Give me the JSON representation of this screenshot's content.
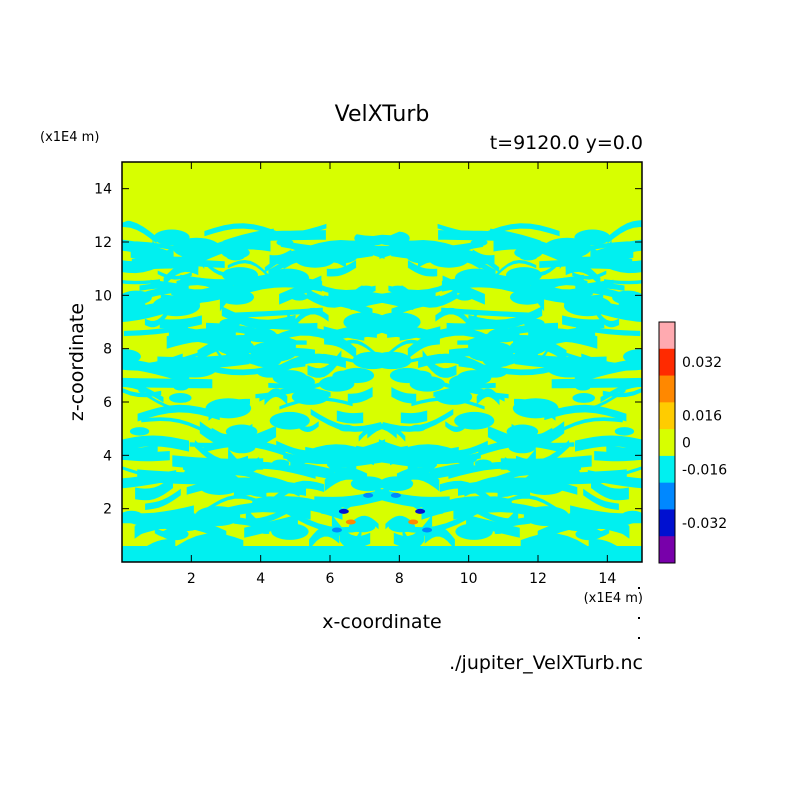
{
  "chart_data": {
    "type": "heatmap",
    "title": "VelXTurb",
    "subtitle": "t=9120.0 y=0.0",
    "xlabel": "x-coordinate",
    "ylabel": "z-coordinate",
    "x_unit": "(x1E4 m)",
    "y_unit": "(x1E4 m)",
    "source_file": "./jupiter_VelXTurb.nc",
    "xlim": [
      0,
      15
    ],
    "ylim": [
      0,
      15
    ],
    "x_ticks": [
      "2",
      "4",
      "6",
      "8",
      "10",
      "12",
      "14"
    ],
    "y_ticks": [
      "2",
      "4",
      "6",
      "8",
      "10",
      "12",
      "14"
    ],
    "colorbar": {
      "labels": [
        "0.032",
        "0.016",
        "0",
        "-0.016",
        "-0.032"
      ],
      "colors": [
        "#ffaab0",
        "#ff2a00",
        "#ff8800",
        "#ffcc00",
        "#d7ff00",
        "#00f0f0",
        "#0088ff",
        "#0010d0",
        "#7800aa"
      ]
    },
    "field_description": {
      "upper_uniform_value": 0,
      "upper_uniform_from_z": 12.7,
      "dominant_colors": [
        "#d7ff00",
        "#00f0f0"
      ]
    }
  }
}
